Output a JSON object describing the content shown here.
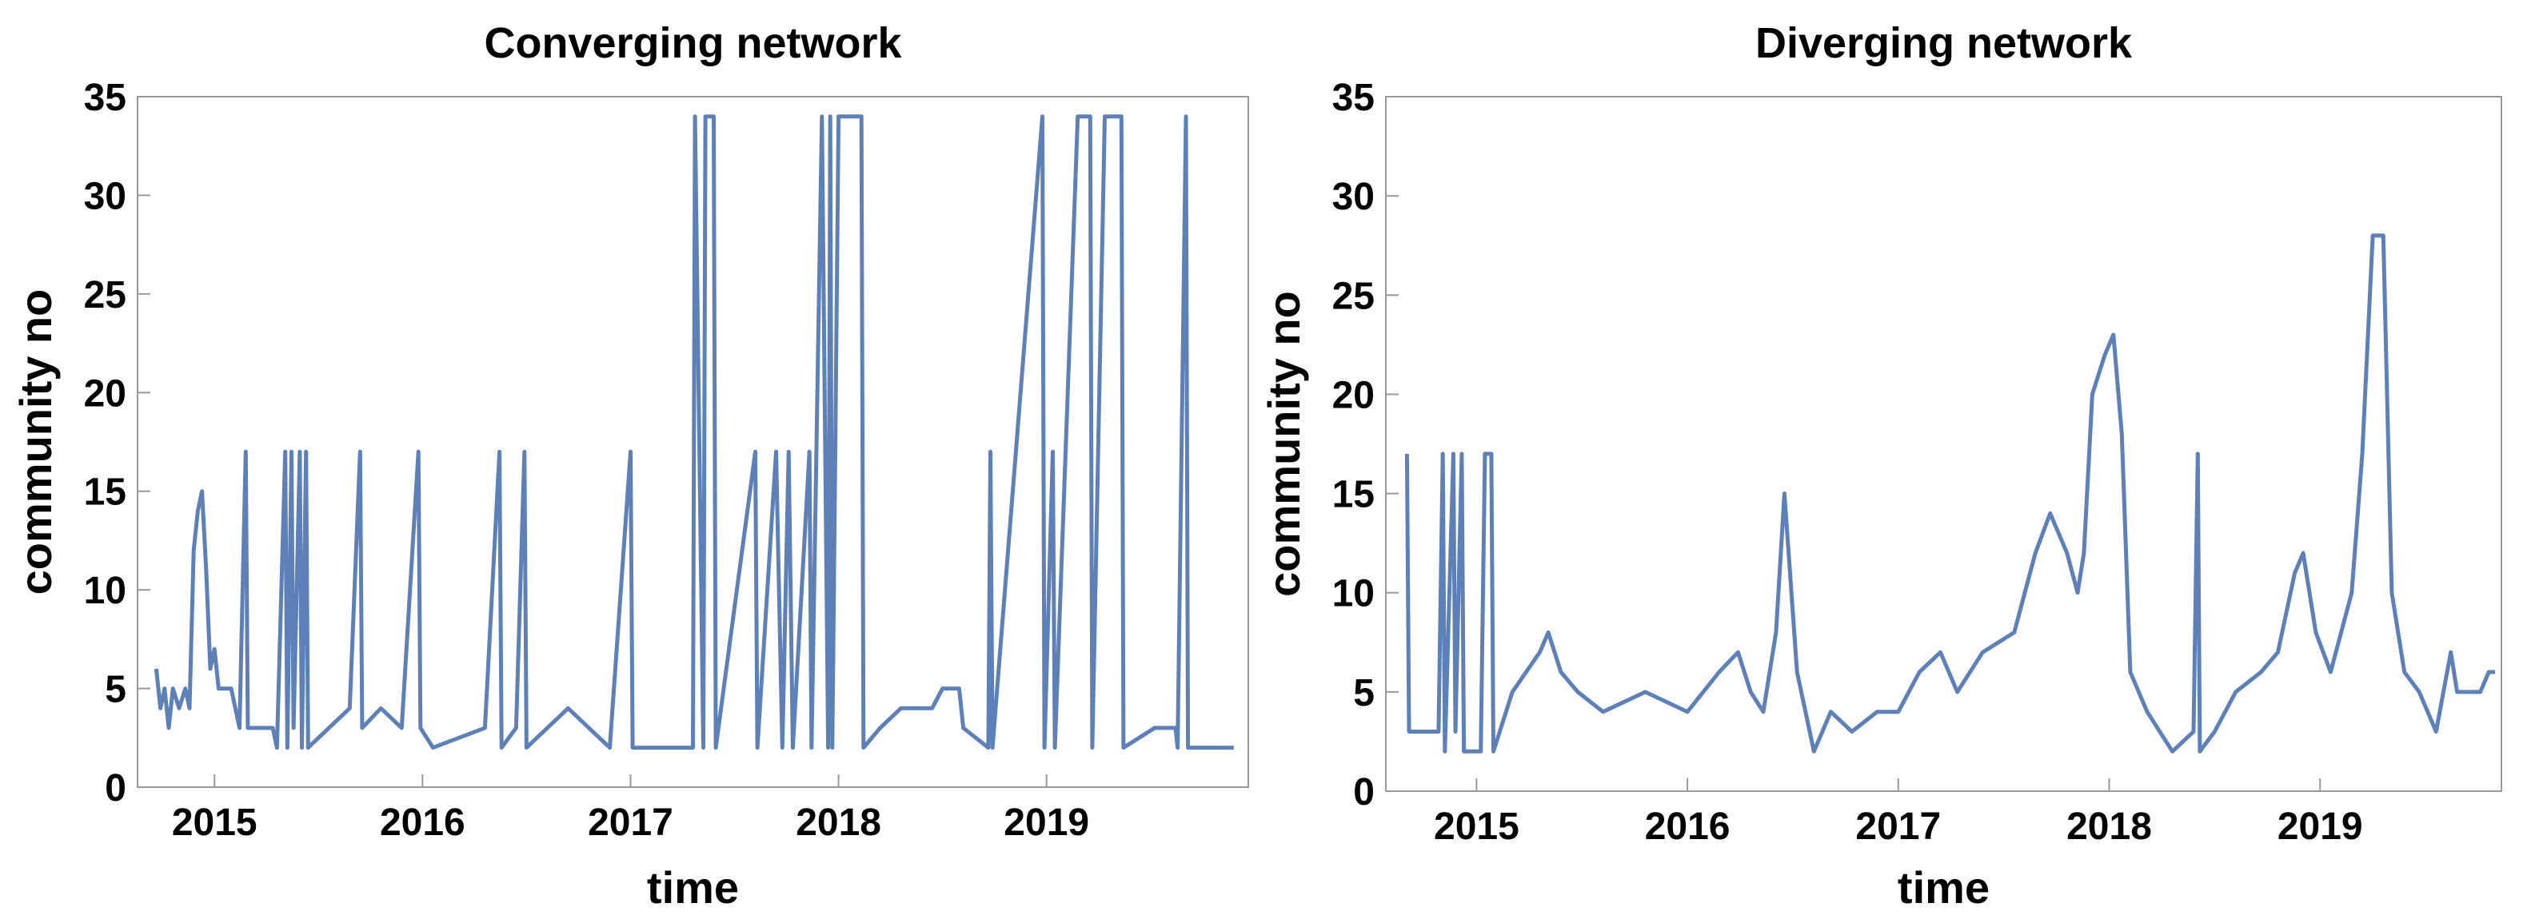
{
  "chart_data": [
    {
      "type": "line",
      "title": "Converging network",
      "xlabel": "time",
      "ylabel": "community no",
      "xlim": [
        2014.63,
        2019.97
      ],
      "xticks": [
        2015,
        2016,
        2017,
        2018,
        2019
      ],
      "ylim": [
        0,
        35
      ],
      "yticks": [
        0,
        5,
        10,
        15,
        20,
        25,
        30,
        35
      ],
      "grid": false,
      "series": [
        {
          "color": "#5d80b9",
          "x": [
            2014.72,
            2014.74,
            2014.76,
            2014.78,
            2014.8,
            2014.83,
            2014.86,
            2014.88,
            2014.9,
            2014.92,
            2014.94,
            2014.96,
            2014.98,
            2015.0,
            2015.02,
            2015.08,
            2015.12,
            2015.15,
            2015.16,
            2015.28,
            2015.3,
            2015.34,
            2015.35,
            2015.37,
            2015.38,
            2015.41,
            2015.42,
            2015.44,
            2015.45,
            2015.55,
            2015.65,
            2015.7,
            2015.71,
            2015.8,
            2015.9,
            2015.98,
            2015.99,
            2016.05,
            2016.3,
            2016.37,
            2016.38,
            2016.45,
            2016.49,
            2016.5,
            2016.6,
            2016.7,
            2016.8,
            2016.9,
            2017.0,
            2017.01,
            2017.3,
            2017.31,
            2017.35,
            2017.36,
            2017.4,
            2017.41,
            2017.6,
            2017.61,
            2017.7,
            2017.73,
            2017.76,
            2017.78,
            2017.86,
            2017.87,
            2017.92,
            2017.95,
            2017.96,
            2017.97,
            2018.0,
            2018.11,
            2018.12,
            2018.2,
            2018.3,
            2018.45,
            2018.5,
            2018.58,
            2018.6,
            2018.72,
            2018.73,
            2018.74,
            2018.98,
            2018.99,
            2019.03,
            2019.04,
            2019.15,
            2019.21,
            2019.22,
            2019.28,
            2019.36,
            2019.37,
            2019.52,
            2019.62,
            2019.63,
            2019.67,
            2019.68,
            2019.9
          ],
          "values": [
            6,
            4,
            5,
            3,
            5,
            4,
            5,
            4,
            12,
            14,
            15,
            11,
            6,
            7,
            5,
            5,
            3,
            17,
            3,
            3,
            2,
            17,
            2,
            17,
            3,
            17,
            2,
            17,
            2,
            3,
            4,
            17,
            3,
            4,
            3,
            17,
            3,
            2,
            3,
            17,
            2,
            3,
            17,
            2,
            3,
            4,
            3,
            2,
            17,
            2,
            2,
            34,
            2,
            34,
            34,
            2,
            17,
            2,
            17,
            2,
            17,
            2,
            17,
            2,
            34,
            2,
            34,
            2,
            34,
            34,
            2,
            3,
            4,
            4,
            5,
            5,
            3,
            2,
            17,
            2,
            34,
            2,
            17,
            2,
            34,
            34,
            2,
            34,
            34,
            2,
            3,
            3,
            2,
            34,
            2,
            2
          ]
        }
      ]
    },
    {
      "type": "line",
      "title": "Diverging network",
      "xlabel": "time",
      "ylabel": "community no",
      "xlim": [
        2014.57,
        2019.86
      ],
      "xticks": [
        2015,
        2016,
        2017,
        2018,
        2019
      ],
      "ylim": [
        0,
        35
      ],
      "yticks": [
        0,
        5,
        10,
        15,
        20,
        25,
        30,
        35
      ],
      "grid": false,
      "series": [
        {
          "color": "#5d80b9",
          "x": [
            2014.67,
            2014.68,
            2014.82,
            2014.84,
            2014.85,
            2014.89,
            2014.9,
            2014.93,
            2014.94,
            2015.02,
            2015.04,
            2015.07,
            2015.08,
            2015.17,
            2015.3,
            2015.34,
            2015.4,
            2015.48,
            2015.6,
            2015.8,
            2016.0,
            2016.15,
            2016.24,
            2016.3,
            2016.36,
            2016.42,
            2016.46,
            2016.52,
            2016.6,
            2016.68,
            2016.78,
            2016.9,
            2017.0,
            2017.1,
            2017.2,
            2017.28,
            2017.4,
            2017.55,
            2017.6,
            2017.65,
            2017.72,
            2017.8,
            2017.85,
            2017.88,
            2017.92,
            2017.98,
            2018.02,
            2018.06,
            2018.1,
            2018.18,
            2018.3,
            2018.4,
            2018.42,
            2018.43,
            2018.5,
            2018.6,
            2018.72,
            2018.8,
            2018.88,
            2018.92,
            2018.98,
            2019.05,
            2019.15,
            2019.2,
            2019.25,
            2019.3,
            2019.34,
            2019.4,
            2019.47,
            2019.55,
            2019.62,
            2019.65,
            2019.76,
            2019.8,
            2019.83
          ],
          "values": [
            17,
            3,
            3,
            17,
            2,
            17,
            3,
            17,
            2,
            2,
            17,
            17,
            2,
            5,
            7,
            8,
            6,
            5,
            4,
            5,
            4,
            6,
            7,
            5,
            4,
            8,
            15,
            6,
            2,
            4,
            3,
            4,
            4,
            6,
            7,
            5,
            7,
            8,
            10,
            12,
            14,
            12,
            10,
            12,
            20,
            22,
            23,
            18,
            6,
            4,
            2,
            3,
            17,
            2,
            3,
            5,
            6,
            7,
            11,
            12,
            8,
            6,
            10,
            17,
            28,
            28,
            10,
            6,
            5,
            3,
            7,
            5,
            5,
            6,
            6
          ]
        }
      ]
    }
  ]
}
